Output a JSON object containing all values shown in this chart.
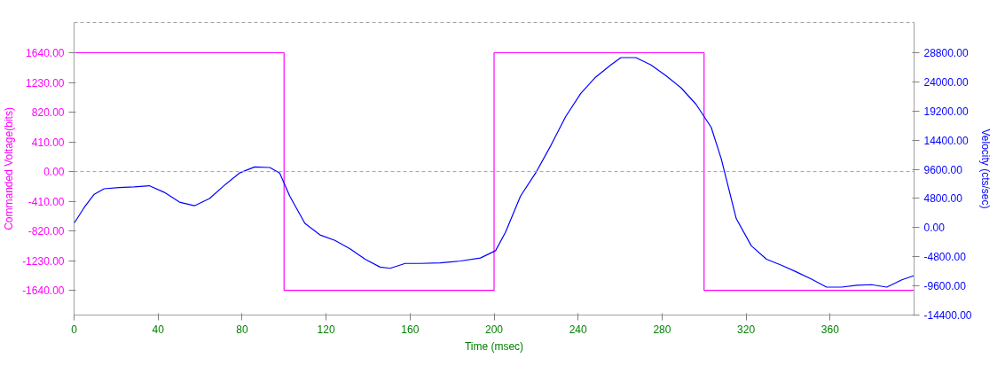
{
  "chart_data": {
    "type": "line",
    "xlabel": "Time (msec)",
    "ylabel": "Commanded Voltage(bits)",
    "y2label": "Velocity (cts/sec)",
    "xlim": [
      0,
      400
    ],
    "xticks": [
      0,
      40,
      80,
      120,
      160,
      200,
      240,
      280,
      320,
      360
    ],
    "ylim": [
      -1980,
      2056
    ],
    "yticks": [
      {
        "value": 1640,
        "label": "1640.00"
      },
      {
        "value": 1230,
        "label": "1230.00"
      },
      {
        "value": 820,
        "label": "820.00"
      },
      {
        "value": 410,
        "label": "410.00"
      },
      {
        "value": 0,
        "label": "0.00"
      },
      {
        "value": -410,
        "label": "-410.00"
      },
      {
        "value": -820,
        "label": "-820.00"
      },
      {
        "value": -1230,
        "label": "-1230.00"
      },
      {
        "value": -1640,
        "label": "-1640.00"
      }
    ],
    "y2lim": [
      -14400,
      33766
    ],
    "y2ticks": [
      {
        "value": 28800,
        "label": "28800.00"
      },
      {
        "value": 24000,
        "label": "24000.00"
      },
      {
        "value": 19200,
        "label": "19200.00"
      },
      {
        "value": 14400,
        "label": "14400.00"
      },
      {
        "value": 9600,
        "label": "9600.00"
      },
      {
        "value": 4800,
        "label": "4800.00"
      },
      {
        "value": 0,
        "label": "0.00"
      },
      {
        "value": -4800,
        "label": "-4800.00"
      },
      {
        "value": -9600,
        "label": "-9600.00"
      },
      {
        "value": -14400,
        "label": "-14400.00"
      }
    ],
    "grid": false,
    "ref_lines": [
      {
        "axis": "y",
        "value": 0,
        "color": "#a0a0a0",
        "line_style": "dashed"
      }
    ],
    "series": [
      {
        "type": "step",
        "color": "#ff00ff",
        "x": [
          0,
          100,
          200,
          300,
          400
        ],
        "values": [
          1640,
          -1640,
          1640,
          -1640,
          -1640
        ]
      },
      {
        "axis": "y2",
        "color": "#0000ff",
        "x": [
          0,
          4.8,
          9.6,
          14.3,
          21.5,
          28.7,
          35.8,
          43,
          50.2,
          57.3,
          64.5,
          71.7,
          78.8,
          86,
          93.2,
          97.9,
          102.7,
          109.9,
          117.1,
          124.2,
          131.4,
          138.6,
          145.7,
          150.5,
          157.7,
          164.8,
          174.4,
          184,
          193.5,
          200.7,
          205.4,
          212.6,
          219.8,
          227,
          234.1,
          241.3,
          248.4,
          255.6,
          260.4,
          267.5,
          274.7,
          281.9,
          289.1,
          296.2,
          303.4,
          308.2,
          315.3,
          322.5,
          329.7,
          336.8,
          344,
          351.2,
          358.3,
          365.5,
          372.7,
          379.8,
          387,
          394.2,
          400
        ],
        "values": [
          700,
          3300,
          5500,
          6400,
          6600,
          6700,
          6900,
          5800,
          4200,
          3600,
          4800,
          7000,
          9000,
          10000,
          9900,
          9000,
          5200,
          700,
          -1200,
          -2100,
          -3500,
          -5200,
          -6500,
          -6700,
          -5900,
          -5900,
          -5800,
          -5500,
          -5000,
          -3800,
          -800,
          5200,
          9000,
          13500,
          18300,
          22100,
          24800,
          26800,
          28000,
          28000,
          26800,
          25000,
          23000,
          20300,
          16500,
          11300,
          1500,
          -3000,
          -5200,
          -6200,
          -7300,
          -8500,
          -9800,
          -9800,
          -9500,
          -9400,
          -9800,
          -8600,
          -7900
        ]
      }
    ]
  }
}
